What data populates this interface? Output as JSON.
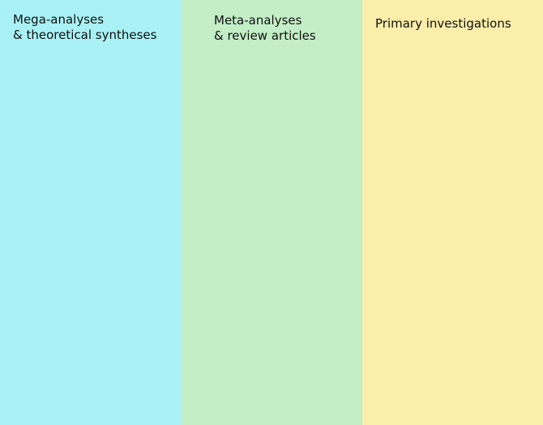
{
  "columns": [
    {
      "lines": [
        "Mega-analyses",
        "& theoretical syntheses"
      ],
      "color": "#a9f1f5"
    },
    {
      "lines": [
        "Meta-analyses",
        "& review articles"
      ],
      "color": "#c3eec6"
    },
    {
      "lines": [
        "Primary investigations"
      ],
      "color": "#fbeeab"
    }
  ]
}
